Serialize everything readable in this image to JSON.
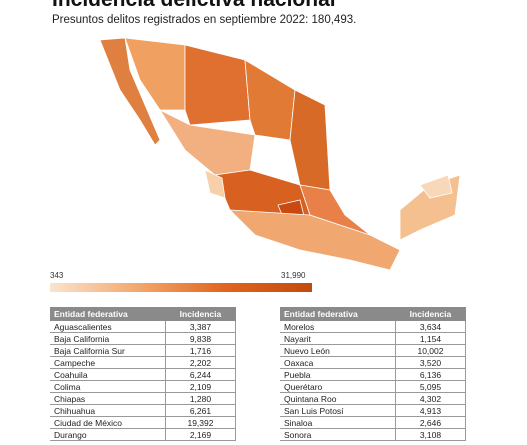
{
  "header": {
    "title": "Incidencia delictiva nacional",
    "subtitle": "Presuntos delitos registrados en septiembre 2022: 180,493."
  },
  "legend": {
    "min": "343",
    "max": "31,990"
  },
  "tables": [
    {
      "headers": [
        "Entidad federativa",
        "Incidencia"
      ],
      "rows": [
        [
          "Aguascalientes",
          "3,387"
        ],
        [
          "Baja California",
          "9,838"
        ],
        [
          "Baja California Sur",
          "1,716"
        ],
        [
          "Campeche",
          "2,202"
        ],
        [
          "Coahuila",
          "6,244"
        ],
        [
          "Colima",
          "2,109"
        ],
        [
          "Chiapas",
          "1,280"
        ],
        [
          "Chihuahua",
          "6,261"
        ],
        [
          "Ciudad de México",
          "19,392"
        ],
        [
          "Durango",
          "2,169"
        ]
      ]
    },
    {
      "headers": [
        "Entidad federativa",
        "Incidencia"
      ],
      "rows": [
        [
          "Morelos",
          "3,634"
        ],
        [
          "Nayarit",
          "1,154"
        ],
        [
          "Nuevo León",
          "10,002"
        ],
        [
          "Oaxaca",
          "3,520"
        ],
        [
          "Puebla",
          "6,136"
        ],
        [
          "Querétaro",
          "5,095"
        ],
        [
          "Quintana Roo",
          "4,302"
        ],
        [
          "San Luis Potosí",
          "4,913"
        ],
        [
          "Sinaloa",
          "2,646"
        ],
        [
          "Sonora",
          "3,108"
        ]
      ]
    }
  ]
}
